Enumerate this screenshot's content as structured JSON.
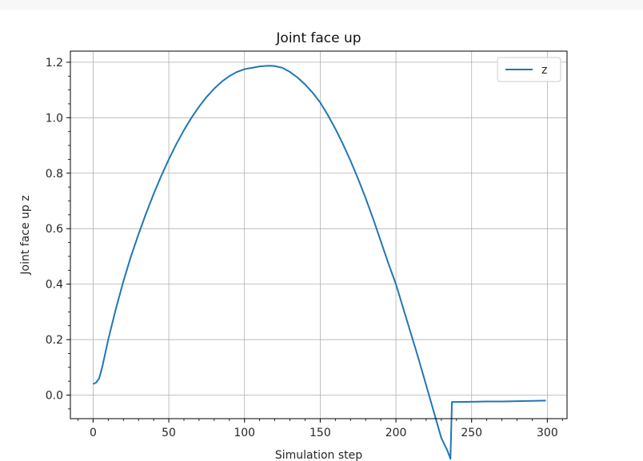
{
  "chart_data": {
    "type": "line",
    "title": "Joint face up",
    "xlabel": "Simulation step",
    "ylabel": "Joint face up z",
    "xlim": [
      -15,
      313
    ],
    "ylim": [
      -0.085,
      1.24
    ],
    "xticks": [
      0,
      50,
      100,
      150,
      200,
      250,
      300
    ],
    "yticks": [
      0.0,
      0.2,
      0.4,
      0.6,
      0.8,
      1.0,
      1.2
    ],
    "ytick_labels": [
      "0.0",
      "0.2",
      "0.4",
      "0.6",
      "0.8",
      "1.0",
      "1.2"
    ],
    "xminor_step": 10,
    "yminor_step": 0.05,
    "grid": true,
    "legend_position": "top-right",
    "series": [
      {
        "name": "z",
        "color": "#1f77b4",
        "x": [
          0,
          2,
          4,
          6,
          8,
          10,
          15,
          20,
          25,
          30,
          35,
          40,
          45,
          50,
          55,
          60,
          65,
          70,
          75,
          80,
          85,
          90,
          95,
          100,
          105,
          110,
          115,
          118,
          120,
          125,
          130,
          135,
          140,
          145,
          150,
          155,
          160,
          165,
          170,
          175,
          180,
          185,
          190,
          195,
          200,
          205,
          210,
          215,
          220,
          225,
          230,
          234,
          236,
          237,
          240,
          250,
          260,
          270,
          280,
          290,
          299
        ],
        "y": [
          0.04,
          0.045,
          0.06,
          0.1,
          0.15,
          0.2,
          0.31,
          0.41,
          0.5,
          0.58,
          0.655,
          0.725,
          0.79,
          0.85,
          0.905,
          0.955,
          1.0,
          1.04,
          1.075,
          1.105,
          1.13,
          1.15,
          1.165,
          1.175,
          1.18,
          1.185,
          1.187,
          1.187,
          1.186,
          1.18,
          1.165,
          1.145,
          1.12,
          1.09,
          1.055,
          1.01,
          0.96,
          0.905,
          0.845,
          0.78,
          0.71,
          0.635,
          0.555,
          0.475,
          0.4,
          0.31,
          0.22,
          0.13,
          0.035,
          -0.06,
          -0.155,
          -0.2,
          -0.23,
          -0.025,
          -0.025,
          -0.024,
          -0.023,
          -0.023,
          -0.022,
          -0.021,
          -0.02
        ]
      }
    ]
  }
}
